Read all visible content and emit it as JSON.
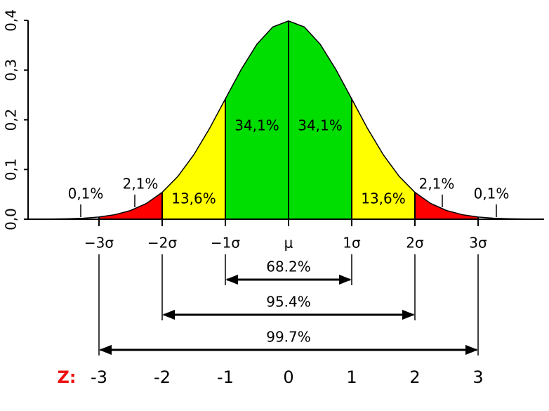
{
  "chart_data": {
    "type": "area",
    "curve": {
      "x": [
        -4,
        -3.75,
        -3.5,
        -3.25,
        -3,
        -2.75,
        -2.5,
        -2.25,
        -2,
        -1.75,
        -1.5,
        -1.25,
        -1,
        -0.75,
        -0.5,
        -0.25,
        0,
        0.25,
        0.5,
        0.75,
        1,
        1.25,
        1.5,
        1.75,
        2,
        2.25,
        2.5,
        2.75,
        3,
        3.25,
        3.5,
        3.75,
        4
      ],
      "y": [
        0.0001,
        0.0004,
        0.0009,
        0.002,
        0.0044,
        0.0091,
        0.0175,
        0.0317,
        0.054,
        0.0863,
        0.1295,
        0.1826,
        0.242,
        0.3011,
        0.3521,
        0.3867,
        0.3989,
        0.3867,
        0.3521,
        0.3011,
        0.242,
        0.1826,
        0.1295,
        0.0863,
        0.054,
        0.0317,
        0.0175,
        0.0091,
        0.0044,
        0.002,
        0.0009,
        0.0004,
        0.0001
      ]
    },
    "xlim": [
      -4,
      4
    ],
    "ylim": [
      0,
      0.4
    ],
    "yticks": [
      {
        "value": 0,
        "label": "0,0"
      },
      {
        "value": 0.1,
        "label": "0,1"
      },
      {
        "value": 0.2,
        "label": "0,2"
      },
      {
        "value": 0.3,
        "label": "0,3"
      },
      {
        "value": 0.4,
        "label": "0,4"
      }
    ],
    "xticks": [
      {
        "value": -3,
        "label": "−3σ"
      },
      {
        "value": -2,
        "label": "−2σ"
      },
      {
        "value": -1,
        "label": "−1σ"
      },
      {
        "value": 0,
        "label": "μ"
      },
      {
        "value": 1,
        "label": "1σ"
      },
      {
        "value": 2,
        "label": "2σ"
      },
      {
        "value": 3,
        "label": "3σ"
      }
    ],
    "regions": [
      {
        "from": -4,
        "to": -3,
        "color": "#ffffff",
        "value": 0.1,
        "label": "0,1%"
      },
      {
        "from": -3,
        "to": -2,
        "color": "#ff0000",
        "value": 2.1,
        "label": "2,1%"
      },
      {
        "from": -2,
        "to": -1,
        "color": "#ffff00",
        "value": 13.6,
        "label": "13,6%"
      },
      {
        "from": -1,
        "to": 0,
        "color": "#00dd00",
        "value": 34.1,
        "label": "34,1%"
      },
      {
        "from": 0,
        "to": 1,
        "color": "#00dd00",
        "value": 34.1,
        "label": "34,1%"
      },
      {
        "from": 1,
        "to": 2,
        "color": "#ffff00",
        "value": 13.6,
        "label": "13,6%"
      },
      {
        "from": 2,
        "to": 3,
        "color": "#ff0000",
        "value": 2.1,
        "label": "2,1%"
      },
      {
        "from": 3,
        "to": 4,
        "color": "#ffffff",
        "value": 0.1,
        "label": "0,1%"
      }
    ],
    "ranges": [
      {
        "from": -1,
        "to": 1,
        "value": 68.2,
        "label": "68.2%"
      },
      {
        "from": -2,
        "to": 2,
        "value": 95.4,
        "label": "95.4%"
      },
      {
        "from": -3,
        "to": 3,
        "value": 99.7,
        "label": "99.7%"
      }
    ],
    "z_label": "Z:",
    "z_color": "#ee1111",
    "z_values": [
      -3,
      -2,
      -1,
      0,
      1,
      2,
      3
    ]
  }
}
